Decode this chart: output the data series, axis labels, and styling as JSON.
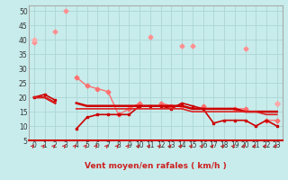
{
  "xlabel": "Vent moyen/en rafales ( km/h )",
  "background_color": "#c8ecec",
  "grid_color": "#b0d8d8",
  "x_values": [
    0,
    1,
    2,
    3,
    4,
    5,
    6,
    7,
    8,
    9,
    10,
    11,
    12,
    13,
    14,
    15,
    16,
    17,
    18,
    19,
    20,
    21,
    22,
    23
  ],
  "series": [
    {
      "y": [
        39,
        null,
        null,
        50,
        null,
        null,
        null,
        null,
        null,
        null,
        null,
        41,
        null,
        null,
        null,
        38,
        null,
        null,
        null,
        null,
        null,
        null,
        null,
        18
      ],
      "color": "#ff9090",
      "lw": 1.0,
      "marker": "D",
      "ms": 2.5
    },
    {
      "y": [
        null,
        null,
        43,
        null,
        null,
        null,
        null,
        null,
        null,
        null,
        null,
        null,
        null,
        null,
        38,
        null,
        null,
        null,
        null,
        null,
        37,
        null,
        null,
        18
      ],
      "color": "#ff9090",
      "lw": 1.0,
      "marker": "D",
      "ms": 2.5
    },
    {
      "y": [
        40,
        null,
        null,
        null,
        null,
        null,
        null,
        null,
        null,
        null,
        null,
        null,
        null,
        null,
        null,
        null,
        null,
        null,
        null,
        null,
        null,
        null,
        null,
        18
      ],
      "color": "#ffaaaa",
      "lw": 1.0,
      "marker": "D",
      "ms": 2.5
    },
    {
      "y": [
        null,
        null,
        null,
        null,
        27,
        24,
        23,
        22,
        14,
        16,
        18,
        null,
        18,
        17,
        17,
        null,
        17,
        null,
        null,
        16,
        16,
        null,
        12,
        12
      ],
      "color": "#ff7070",
      "lw": 1.0,
      "marker": "D",
      "ms": 2.5
    },
    {
      "y": [
        20,
        21,
        19,
        null,
        9,
        13,
        14,
        14,
        14,
        14,
        17,
        17,
        17,
        16,
        18,
        17,
        16,
        11,
        12,
        12,
        12,
        10,
        12,
        10
      ],
      "color": "#cc0000",
      "lw": 1.2,
      "marker": "s",
      "ms": 2.0
    },
    {
      "y": [
        20,
        20,
        18,
        null,
        18,
        17,
        17,
        17,
        17,
        17,
        17,
        17,
        17,
        17,
        17,
        16,
        16,
        16,
        16,
        16,
        15,
        15,
        15,
        15
      ],
      "color": "#cc0000",
      "lw": 1.8,
      "marker": null,
      "ms": 0
    },
    {
      "y": [
        20,
        20,
        18,
        null,
        16,
        16,
        16,
        16,
        16,
        16,
        16,
        16,
        16,
        16,
        16,
        15,
        15,
        15,
        15,
        15,
        15,
        15,
        14,
        14
      ],
      "color": "#dd2222",
      "lw": 1.2,
      "marker": null,
      "ms": 0
    }
  ],
  "xlim": [
    -0.5,
    23.5
  ],
  "ylim": [
    5,
    52
  ],
  "yticks": [
    5,
    10,
    15,
    20,
    25,
    30,
    35,
    40,
    45,
    50
  ],
  "xticks": [
    0,
    1,
    2,
    3,
    4,
    5,
    6,
    7,
    8,
    9,
    10,
    11,
    12,
    13,
    14,
    15,
    16,
    17,
    18,
    19,
    20,
    21,
    22,
    23
  ],
  "arrow_color": "#cc2222",
  "tick_label_color": "#333333"
}
